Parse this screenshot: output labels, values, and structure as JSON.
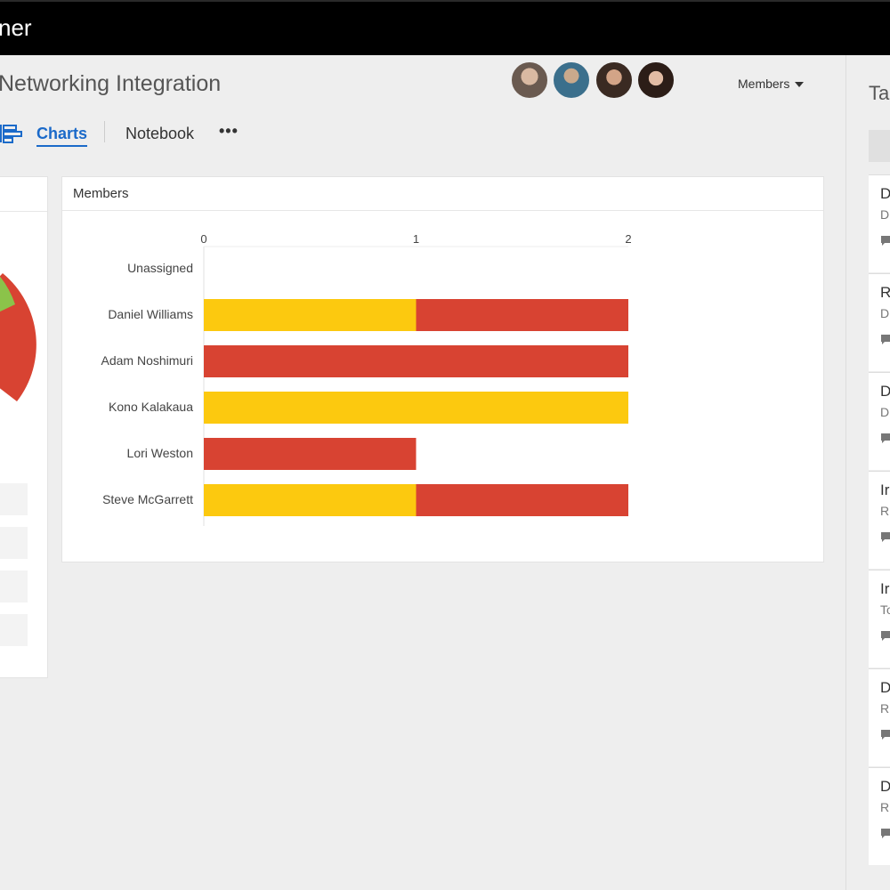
{
  "app": {
    "title_fragment": "ner"
  },
  "plan": {
    "title_fragment": "Networking Integration"
  },
  "members_dropdown": {
    "label": "Members"
  },
  "tabs": {
    "charts_label": "Charts",
    "notebook_label": "Notebook",
    "more_label": "•••"
  },
  "chart_card": {
    "title": "Members"
  },
  "chart_data": {
    "type": "bar",
    "orientation": "horizontal",
    "stacked": true,
    "categories": [
      "Unassigned",
      "Daniel Williams",
      "Adam Noshimuri",
      "Kono Kalakaua",
      "Lori Weston",
      "Steve McGarrett"
    ],
    "series": [
      {
        "color": "#fcc90f",
        "values": [
          0,
          1,
          0,
          2,
          0,
          1
        ]
      },
      {
        "color": "#d84332",
        "values": [
          0,
          1,
          2,
          0,
          1,
          1
        ]
      }
    ],
    "xlim": [
      0,
      2
    ],
    "xticks": [
      "0",
      "1",
      "2"
    ],
    "grid": false
  },
  "left_pie": {
    "colors": {
      "red": "#d84332",
      "green": "#8bc34a"
    }
  },
  "right_panel": {
    "title_fragment": "Ta",
    "tasks": [
      {
        "title": "D",
        "sub": "D"
      },
      {
        "title": "R",
        "sub": "D"
      },
      {
        "title": "D",
        "sub": "D"
      },
      {
        "title": "Ir",
        "sub": "R"
      },
      {
        "title": "Ir",
        "sub": "To"
      },
      {
        "title": "D",
        "sub": "R"
      },
      {
        "title": "D",
        "sub": "R"
      }
    ]
  },
  "colors": {
    "accent": "#1b6ac9",
    "bar_yellow": "#fcc90f",
    "bar_red": "#d84332"
  }
}
